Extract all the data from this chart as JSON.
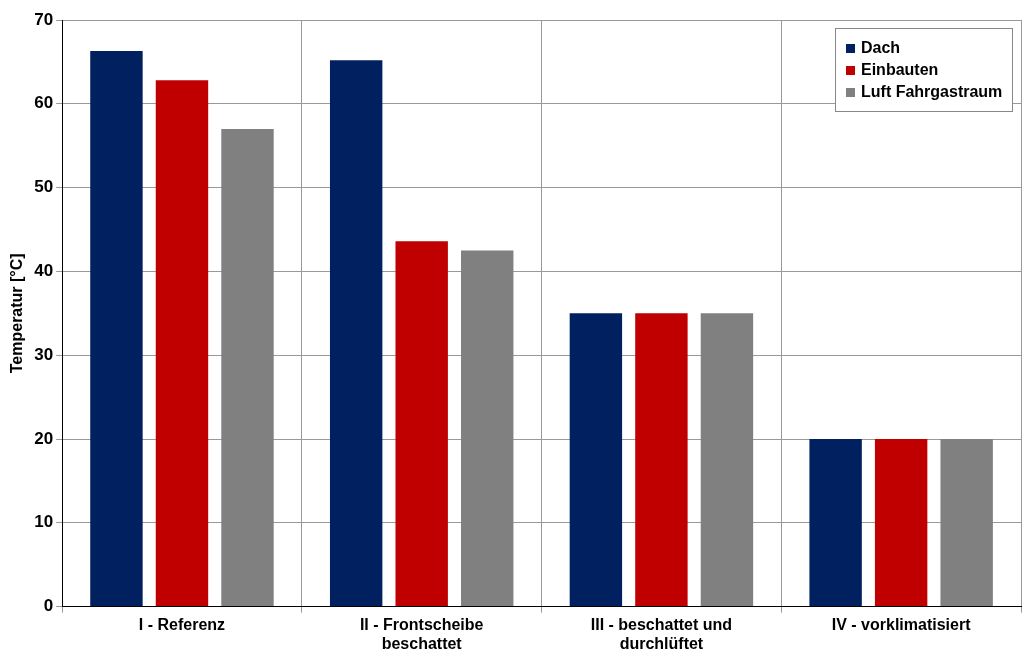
{
  "chart_data": {
    "type": "bar",
    "ylabel": "Temperatur [°C]",
    "categories": [
      "I - Referenz",
      "II - Frontscheibe beschattet",
      "III - beschattet und durchlüftet",
      "IV - vorklimatisiert"
    ],
    "series": [
      {
        "name": "Dach",
        "color": "#002060",
        "values": [
          66.3,
          65.2,
          35,
          20
        ]
      },
      {
        "name": "Einbauten",
        "color": "#c00000",
        "values": [
          62.8,
          43.6,
          35,
          20
        ]
      },
      {
        "name": "Luft Fahrgastraum",
        "color": "#808080",
        "values": [
          57,
          42.5,
          35,
          20
        ]
      }
    ],
    "ylim": [
      0,
      70
    ],
    "yticks": [
      0,
      10,
      20,
      30,
      40,
      50,
      60,
      70
    ],
    "grid": true,
    "legend": "top right"
  }
}
